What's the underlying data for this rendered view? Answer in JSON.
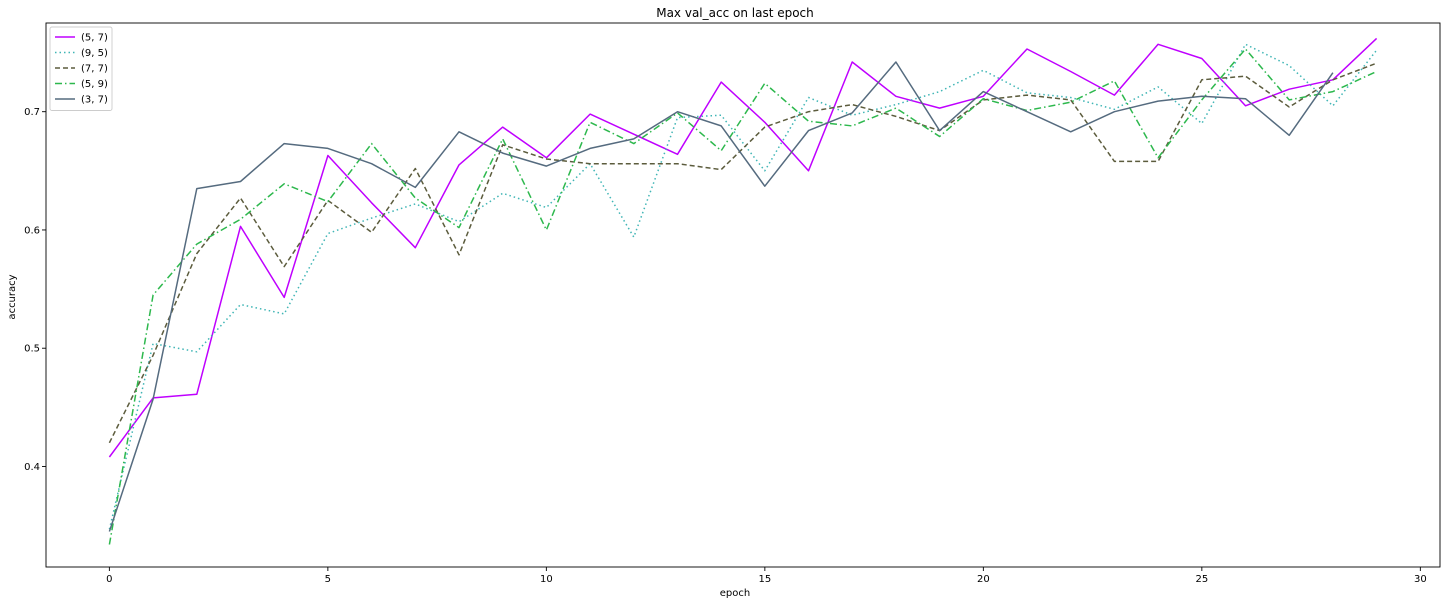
{
  "chart_data": {
    "type": "line",
    "title": "Max val_acc on last epoch",
    "xlabel": "epoch",
    "ylabel": "accuracy",
    "xlim": [
      -1.45,
      30.45
    ],
    "ylim": [
      0.315,
      0.775
    ],
    "xticks": [
      0,
      5,
      10,
      15,
      20,
      25,
      30
    ],
    "yticks": [
      0.4,
      0.5,
      0.6,
      0.7
    ],
    "grid": false,
    "legend_position": "top-left",
    "x": [
      0,
      1,
      2,
      3,
      4,
      5,
      6,
      7,
      8,
      9,
      10,
      11,
      12,
      13,
      14,
      15,
      16,
      17,
      18,
      19,
      20,
      21,
      22,
      23,
      24,
      25,
      26,
      27,
      28,
      29
    ],
    "series": [
      {
        "name": "(5, 7)",
        "color": "#bf00ff",
        "dash": "solid",
        "values": [
          0.408,
          0.458,
          0.461,
          0.603,
          0.543,
          0.663,
          0.623,
          0.585,
          0.655,
          0.687,
          0.661,
          0.698,
          0.681,
          0.664,
          0.725,
          0.691,
          0.65,
          0.742,
          0.713,
          0.703,
          0.713,
          0.753,
          0.734,
          0.714,
          0.757,
          0.745,
          0.705,
          0.719,
          0.727,
          0.762
        ]
      },
      {
        "name": "(9, 5)",
        "color": "#3fb5b5",
        "dash": "dotted",
        "values": [
          0.347,
          0.504,
          0.497,
          0.537,
          0.529,
          0.597,
          0.61,
          0.622,
          0.607,
          0.631,
          0.619,
          0.656,
          0.594,
          0.695,
          0.697,
          0.65,
          0.712,
          0.697,
          0.706,
          0.717,
          0.735,
          0.716,
          0.712,
          0.702,
          0.721,
          0.69,
          0.757,
          0.739,
          0.705,
          0.752
        ]
      },
      {
        "name": "(7, 7)",
        "color": "#5c5c3d",
        "dash": "dashed",
        "values": [
          0.42,
          0.494,
          0.58,
          0.627,
          0.569,
          0.625,
          0.598,
          0.652,
          0.579,
          0.672,
          0.66,
          0.656,
          0.656,
          0.656,
          0.651,
          0.687,
          0.7,
          0.706,
          0.696,
          0.684,
          0.71,
          0.714,
          0.71,
          0.658,
          0.658,
          0.727,
          0.73,
          0.704,
          0.727,
          0.741
        ]
      },
      {
        "name": "(5, 9)",
        "color": "#2db84d",
        "dash": "dashdot",
        "values": [
          0.334,
          0.545,
          0.588,
          0.609,
          0.639,
          0.624,
          0.673,
          0.627,
          0.602,
          0.677,
          0.6,
          0.691,
          0.673,
          0.699,
          0.667,
          0.724,
          0.692,
          0.688,
          0.703,
          0.679,
          0.711,
          0.701,
          0.708,
          0.726,
          0.661,
          0.71,
          0.753,
          0.71,
          0.717,
          0.734
        ]
      },
      {
        "name": "(3, 7)",
        "color": "#556b7f",
        "dash": "solid",
        "values": [
          0.345,
          0.457,
          0.635,
          0.641,
          0.673,
          0.669,
          0.656,
          0.636,
          0.683,
          0.665,
          0.654,
          0.669,
          0.677,
          0.7,
          0.688,
          0.637,
          0.684,
          0.699,
          0.742,
          0.684,
          0.717,
          0.7,
          0.683,
          0.7,
          0.709,
          0.713,
          0.711,
          0.68,
          0.733,
          null
        ]
      }
    ]
  }
}
